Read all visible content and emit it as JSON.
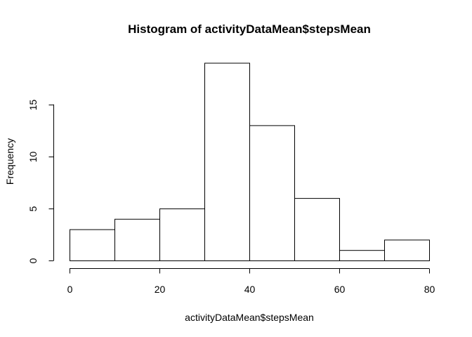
{
  "chart_data": {
    "type": "bar",
    "title": "Histogram of activityDataMean$stepsMean",
    "xlabel": "activityDataMean$stepsMean",
    "ylabel": "Frequency",
    "bins": [
      {
        "from": 0,
        "to": 10,
        "count": 3
      },
      {
        "from": 10,
        "to": 20,
        "count": 4
      },
      {
        "from": 20,
        "to": 30,
        "count": 5
      },
      {
        "from": 30,
        "to": 40,
        "count": 19
      },
      {
        "from": 40,
        "to": 50,
        "count": 13
      },
      {
        "from": 50,
        "to": 60,
        "count": 6
      },
      {
        "from": 60,
        "to": 70,
        "count": 1
      },
      {
        "from": 70,
        "to": 80,
        "count": 2
      }
    ],
    "xlim": [
      0,
      80
    ],
    "ylim": [
      0,
      19
    ],
    "x_ticks": [
      "0",
      "20",
      "40",
      "60",
      "80"
    ],
    "y_ticks": [
      "0",
      "5",
      "10",
      "15"
    ],
    "grid": false,
    "bar_fill": "#ffffff",
    "bar_stroke": "#000000"
  }
}
